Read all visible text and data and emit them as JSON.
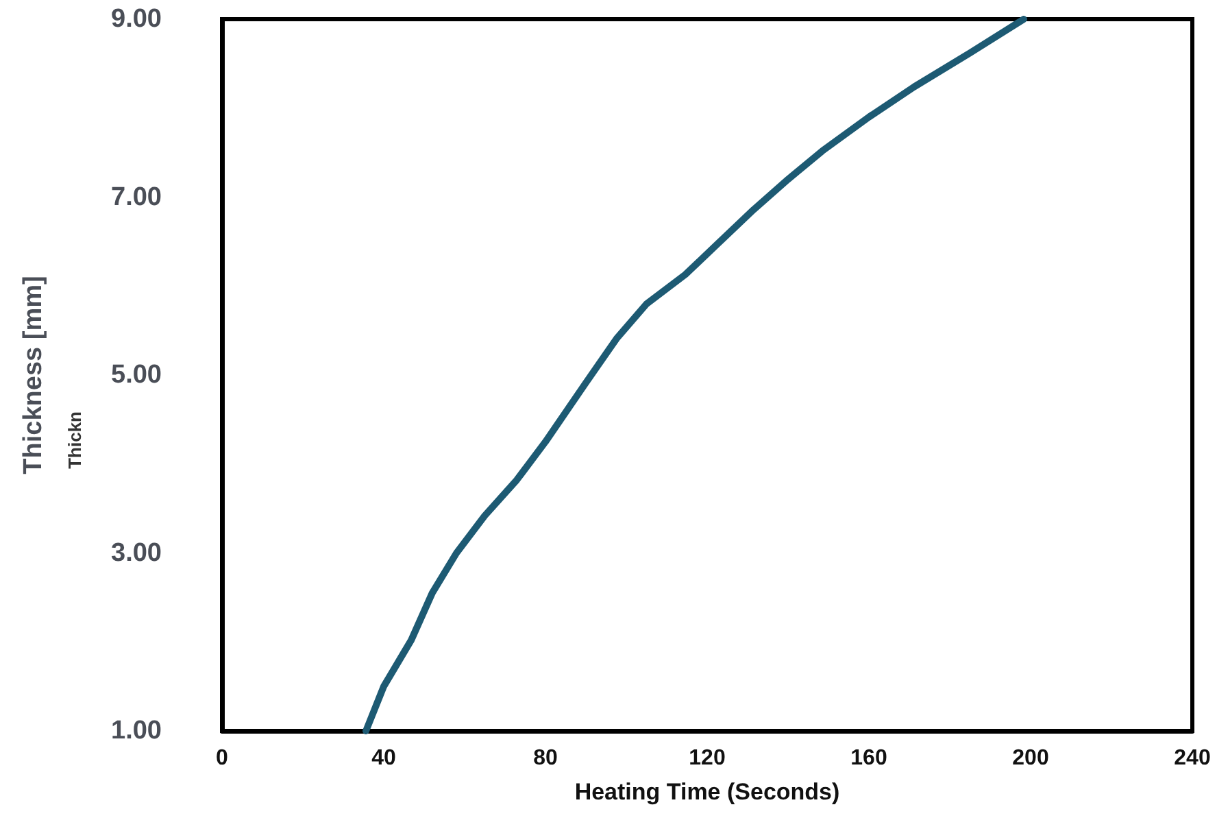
{
  "chart_data": {
    "type": "line",
    "xlabel": "Heating Time (Seconds)",
    "ylabel": "Thickness [mm]",
    "annotations": [
      "Thickn"
    ],
    "x": [
      35.6,
      40,
      46.8,
      52,
      58,
      65,
      72.9,
      80,
      89.8,
      97.6,
      105,
      114.6,
      122,
      131.5,
      140,
      148.5,
      160,
      171.2,
      185,
      198.3
    ],
    "series": [
      {
        "color": "#1d5a73",
        "values": [
          1.0,
          1.5,
          2.02,
          2.55,
          3.0,
          3.42,
          3.82,
          4.25,
          4.9,
          5.41,
          5.8,
          6.13,
          6.45,
          6.86,
          7.2,
          7.52,
          7.9,
          8.24,
          8.62,
          9.0
        ]
      }
    ],
    "xlim": [
      0,
      240
    ],
    "xticks": [
      0,
      40,
      80,
      120,
      160,
      200,
      240
    ],
    "ylim": [
      1,
      9
    ],
    "yticks": [
      {
        "value": 1,
        "label": "1.00"
      },
      {
        "value": 3,
        "label": "3.00"
      },
      {
        "value": 5,
        "label": "5.00"
      },
      {
        "value": 7,
        "label": "7.00"
      },
      {
        "value": 9,
        "label": "9.00"
      }
    ],
    "grid": false,
    "marker": "none",
    "line_style": "solid"
  }
}
